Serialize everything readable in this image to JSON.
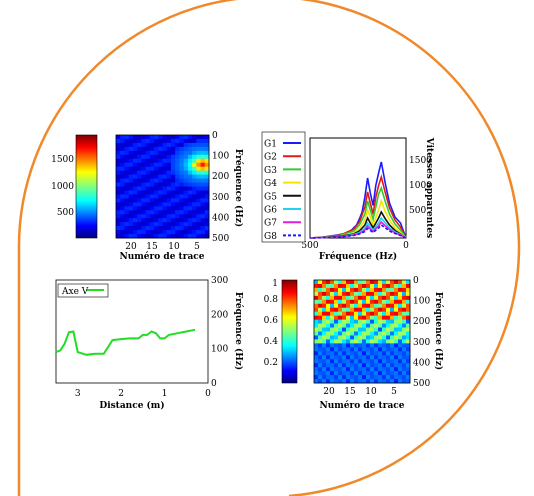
{
  "frame": {
    "stroke": "#F0892A",
    "fill": "#ffffff"
  },
  "chart_data": [
    {
      "type": "line",
      "panel": "top-right",
      "xlabel": "Fréquence (Hz)",
      "ylabel": "Vitesses apparentes",
      "xlim": [
        0,
        700
      ],
      "ylim": [
        0,
        2000
      ],
      "xticks": [
        "0",
        "500"
      ],
      "yticks": [
        "500",
        "1000",
        "1500"
      ],
      "legend_position": "left",
      "series": [
        {
          "name": "G1",
          "color": "#1a1aff",
          "dashed": false,
          "x": [
            0,
            40,
            80,
            120,
            150,
            180,
            200,
            220,
            240,
            260,
            280,
            300,
            320,
            340,
            360,
            400,
            450,
            500,
            550,
            600,
            650,
            700
          ],
          "y": [
            0,
            300,
            420,
            700,
            1080,
            1520,
            1300,
            1050,
            650,
            900,
            1200,
            820,
            520,
            380,
            260,
            150,
            90,
            60,
            40,
            20,
            10,
            0
          ]
        },
        {
          "name": "G2",
          "color": "#e31a1a",
          "dashed": false,
          "x": [
            0,
            40,
            80,
            120,
            150,
            180,
            200,
            220,
            240,
            260,
            280,
            300,
            340,
            380,
            450,
            500,
            600,
            700
          ],
          "y": [
            0,
            220,
            360,
            600,
            900,
            1220,
            1050,
            820,
            480,
            700,
            920,
            620,
            320,
            180,
            90,
            50,
            20,
            0
          ]
        },
        {
          "name": "G3",
          "color": "#2ecc2e",
          "dashed": false,
          "x": [
            0,
            40,
            80,
            120,
            150,
            180,
            200,
            220,
            240,
            260,
            280,
            300,
            340,
            380,
            450,
            500,
            600,
            700
          ],
          "y": [
            0,
            160,
            280,
            480,
            720,
            1000,
            880,
            620,
            380,
            560,
            740,
            480,
            260,
            140,
            80,
            40,
            15,
            0
          ]
        },
        {
          "name": "G4",
          "color": "#f2e600",
          "dashed": false,
          "x": [
            0,
            40,
            80,
            120,
            150,
            180,
            200,
            240,
            260,
            280,
            300,
            340,
            380,
            450,
            500,
            600,
            700
          ],
          "y": [
            0,
            110,
            200,
            360,
            520,
            740,
            560,
            260,
            420,
            560,
            360,
            180,
            100,
            60,
            30,
            10,
            0
          ]
        },
        {
          "name": "G5",
          "color": "#111111",
          "dashed": false,
          "x": [
            0,
            40,
            80,
            120,
            150,
            180,
            200,
            240,
            260,
            280,
            300,
            340,
            380,
            450,
            500,
            600,
            700
          ],
          "y": [
            0,
            80,
            150,
            260,
            380,
            520,
            400,
            200,
            300,
            400,
            260,
            140,
            80,
            50,
            30,
            10,
            0
          ]
        },
        {
          "name": "G6",
          "color": "#1fd3ee",
          "dashed": false,
          "x": [
            0,
            40,
            80,
            120,
            150,
            180,
            200,
            240,
            260,
            280,
            300,
            340,
            380,
            450,
            500,
            600,
            700
          ],
          "y": [
            0,
            70,
            120,
            200,
            300,
            400,
            300,
            160,
            230,
            300,
            200,
            110,
            70,
            40,
            20,
            10,
            0
          ]
        },
        {
          "name": "G7",
          "color": "#e01fe0",
          "dashed": false,
          "x": [
            0,
            40,
            80,
            120,
            150,
            180,
            200,
            240,
            260,
            280,
            300,
            340,
            380,
            450,
            500,
            600,
            700
          ],
          "y": [
            0,
            60,
            100,
            170,
            240,
            320,
            240,
            130,
            180,
            240,
            160,
            90,
            60,
            35,
            20,
            10,
            0
          ]
        },
        {
          "name": "G8",
          "color": "#1a1aff",
          "dashed": true,
          "x": [
            0,
            40,
            80,
            120,
            150,
            180,
            200,
            240,
            260,
            280,
            300,
            340,
            380,
            450,
            500,
            600,
            700
          ],
          "y": [
            0,
            50,
            90,
            140,
            200,
            260,
            200,
            110,
            150,
            190,
            130,
            80,
            50,
            30,
            15,
            8,
            0
          ]
        }
      ]
    },
    {
      "type": "heatmap",
      "panel": "top-left",
      "xlabel": "Numéro de trace",
      "ylabel": "Fréquence (Hz)",
      "xticks": [
        "5",
        "10",
        "15",
        "20"
      ],
      "yticks": [
        "0",
        "100",
        "200",
        "300",
        "400",
        "500"
      ],
      "colorbar_ticks": [
        "500",
        "1000",
        "1500"
      ],
      "clim": [
        0,
        1800
      ]
    },
    {
      "type": "line",
      "panel": "bottom-left",
      "xlabel": "Distance (m)",
      "ylabel": "Fréquence (Hz)",
      "xlim": [
        0,
        3.5
      ],
      "ylim": [
        0,
        300
      ],
      "xticks": [
        "0",
        "1",
        "2",
        "3"
      ],
      "yticks": [
        "0",
        "100",
        "200",
        "300"
      ],
      "legend_position": "top-left",
      "series": [
        {
          "name": "Axe V",
          "color": "#22dd22",
          "x": [
            0.3,
            0.5,
            0.7,
            0.9,
            1.0,
            1.1,
            1.2,
            1.3,
            1.4,
            1.5,
            1.6,
            1.8,
            2.0,
            2.2,
            2.4,
            2.6,
            2.8,
            3.0,
            3.1,
            3.2,
            3.3,
            3.4,
            3.5
          ],
          "y": [
            155,
            150,
            145,
            140,
            130,
            130,
            145,
            150,
            140,
            140,
            130,
            130,
            128,
            125,
            85,
            85,
            82,
            90,
            150,
            148,
            115,
            95,
            90
          ]
        }
      ]
    },
    {
      "type": "heatmap",
      "panel": "bottom-right",
      "xlabel": "Numéro de trace",
      "ylabel": "Fréquence (Hz)",
      "xticks": [
        "5",
        "10",
        "15",
        "20"
      ],
      "yticks": [
        "0",
        "100",
        "200",
        "300",
        "400",
        "500"
      ],
      "colorbar_ticks": [
        "0.2",
        "0.4",
        "0.6",
        "0.8",
        "1"
      ],
      "clim": [
        0,
        1
      ]
    }
  ]
}
